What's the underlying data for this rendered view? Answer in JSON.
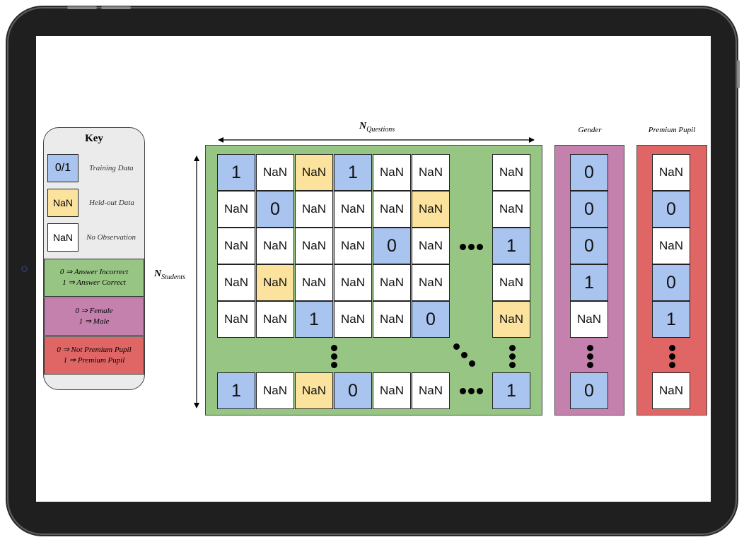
{
  "key": {
    "title": "Key",
    "items": [
      {
        "box": "0/1",
        "label": "Training Data",
        "color": "#a9c4ee"
      },
      {
        "box": "NaN",
        "label": "Held-out Data",
        "color": "#fbe39e"
      },
      {
        "box": "NaN",
        "label": "No Observation",
        "color": "#ffffff"
      }
    ],
    "answer_legend": {
      "line1": "0 ⇒ Answer Incorrect",
      "line2": "1 ⇒ Answer Correct",
      "color": "#97c583"
    },
    "gender_legend": {
      "line1": "0 ⇒ Female",
      "line2": "1 ⇒ Male",
      "color": "#c581ae"
    },
    "premium_legend": {
      "line1": "0 ⇒ Not Premium Pupil",
      "line2": "1 ⇒ Premium Pupil",
      "color": "#e06666"
    }
  },
  "axes": {
    "questions_label": "N",
    "questions_sub": "Questions",
    "students_label": "N",
    "students_sub": "Students"
  },
  "matrix": {
    "color": "#97c583",
    "rows": [
      [
        {
          "v": "1",
          "c": "blue"
        },
        {
          "v": "NaN",
          "c": "white"
        },
        {
          "v": "NaN",
          "c": "yellow"
        },
        {
          "v": "1",
          "c": "blue"
        },
        {
          "v": "NaN",
          "c": "white"
        },
        {
          "v": "NaN",
          "c": "white"
        },
        {
          "v": "NaN",
          "c": "white"
        }
      ],
      [
        {
          "v": "NaN",
          "c": "white"
        },
        {
          "v": "0",
          "c": "blue"
        },
        {
          "v": "NaN",
          "c": "white"
        },
        {
          "v": "NaN",
          "c": "white"
        },
        {
          "v": "NaN",
          "c": "white"
        },
        {
          "v": "NaN",
          "c": "yellow"
        },
        {
          "v": "NaN",
          "c": "white"
        }
      ],
      [
        {
          "v": "NaN",
          "c": "white"
        },
        {
          "v": "NaN",
          "c": "white"
        },
        {
          "v": "NaN",
          "c": "white"
        },
        {
          "v": "NaN",
          "c": "white"
        },
        {
          "v": "0",
          "c": "blue"
        },
        {
          "v": "NaN",
          "c": "white"
        },
        {
          "v": "1",
          "c": "blue"
        }
      ],
      [
        {
          "v": "NaN",
          "c": "white"
        },
        {
          "v": "NaN",
          "c": "yellow"
        },
        {
          "v": "NaN",
          "c": "white"
        },
        {
          "v": "NaN",
          "c": "white"
        },
        {
          "v": "NaN",
          "c": "white"
        },
        {
          "v": "NaN",
          "c": "white"
        },
        {
          "v": "NaN",
          "c": "white"
        }
      ],
      [
        {
          "v": "NaN",
          "c": "white"
        },
        {
          "v": "NaN",
          "c": "white"
        },
        {
          "v": "1",
          "c": "blue"
        },
        {
          "v": "NaN",
          "c": "white"
        },
        {
          "v": "NaN",
          "c": "white"
        },
        {
          "v": "0",
          "c": "blue"
        },
        {
          "v": "NaN",
          "c": "yellow"
        }
      ],
      [
        {
          "v": "1",
          "c": "blue"
        },
        {
          "v": "NaN",
          "c": "white"
        },
        {
          "v": "NaN",
          "c": "yellow"
        },
        {
          "v": "0",
          "c": "blue"
        },
        {
          "v": "NaN",
          "c": "white"
        },
        {
          "v": "NaN",
          "c": "white"
        },
        {
          "v": "1",
          "c": "blue"
        }
      ]
    ]
  },
  "gender": {
    "title": "Gender",
    "color": "#c581ae",
    "cells": [
      {
        "v": "0",
        "c": "blue"
      },
      {
        "v": "0",
        "c": "blue"
      },
      {
        "v": "0",
        "c": "blue"
      },
      {
        "v": "1",
        "c": "blue"
      },
      {
        "v": "NaN",
        "c": "white"
      },
      {
        "v": "0",
        "c": "blue"
      }
    ]
  },
  "premium": {
    "title": "Premium Pupil",
    "color": "#e06666",
    "cells": [
      {
        "v": "NaN",
        "c": "white"
      },
      {
        "v": "0",
        "c": "blue"
      },
      {
        "v": "NaN",
        "c": "white"
      },
      {
        "v": "0",
        "c": "blue"
      },
      {
        "v": "1",
        "c": "blue"
      },
      {
        "v": "NaN",
        "c": "white"
      }
    ]
  }
}
